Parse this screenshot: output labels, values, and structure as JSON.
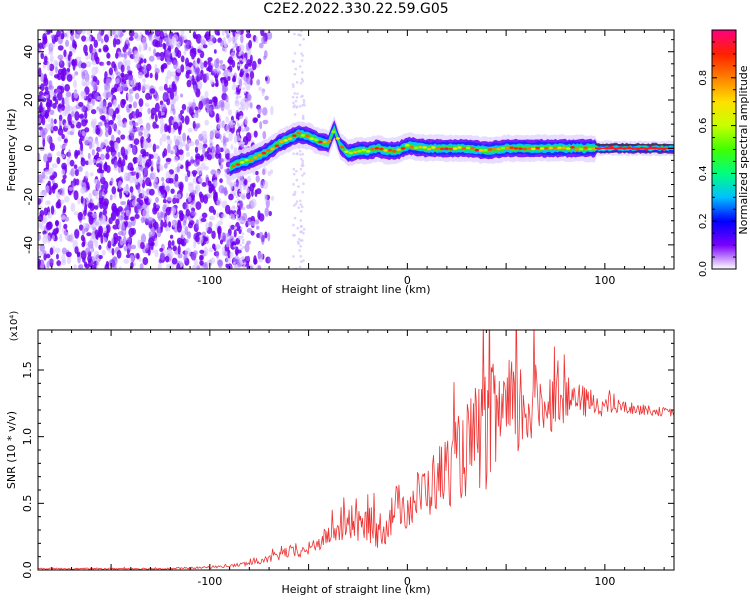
{
  "title": "C2E2.2022.330.22.59.G05",
  "chart_data": [
    {
      "type": "heatmap",
      "xlabel": "Height of straight line (km)",
      "ylabel": "Frequency (Hz)",
      "xlim": [
        -187,
        135
      ],
      "ylim": [
        -50,
        49
      ],
      "xticks": [
        -100,
        0,
        100
      ],
      "xtick_labels": [
        "-100",
        "0",
        "100"
      ],
      "yticks": [
        -40,
        -20,
        0,
        20,
        40
      ],
      "ytick_labels": [
        "-40",
        "-20",
        "0",
        "20",
        "40"
      ],
      "grid": false,
      "noise_region_x": [
        -187,
        -80
      ],
      "ridge": {
        "x": [
          -90,
          -85,
          -80,
          -75,
          -70,
          -65,
          -60,
          -55,
          -50,
          -45,
          -40,
          -37,
          -34,
          -30,
          -25,
          -20,
          -15,
          -10,
          -5,
          0,
          10,
          20,
          30,
          40,
          50,
          60,
          70,
          80,
          90,
          100,
          110,
          120,
          135
        ],
        "y": [
          -8,
          -6,
          -5,
          -3,
          -1,
          2,
          4,
          6,
          5,
          3,
          2,
          8,
          1,
          -2,
          -1,
          -1,
          0,
          -1,
          -1,
          1,
          0,
          0,
          0,
          -1,
          0,
          0,
          0,
          0,
          0,
          0,
          0,
          0,
          0
        ]
      }
    },
    {
      "type": "line",
      "xlabel": "Height of straight line (km)",
      "ylabel": "SNR (10 * v/v)",
      "y_multiplier": "(x10⁴)",
      "xlim": [
        -187,
        135
      ],
      "ylim": [
        0,
        1.8
      ],
      "xticks": [
        -100,
        0,
        100
      ],
      "xtick_labels": [
        "-100",
        "0",
        "100"
      ],
      "yticks": [
        0,
        0.5,
        1.0,
        1.5
      ],
      "ytick_labels": [
        "0.0",
        "0.5",
        "1.0",
        "1.5"
      ],
      "grid": false,
      "series": [
        {
          "color": "#ee3333",
          "x": [
            -187,
            -150,
            -120,
            -100,
            -90,
            -80,
            -70,
            -60,
            -55,
            -50,
            -45,
            -40,
            -35,
            -30,
            -25,
            -20,
            -15,
            -10,
            -5,
            0,
            5,
            10,
            15,
            20,
            25,
            30,
            35,
            40,
            45,
            50,
            55,
            60,
            65,
            70,
            75,
            80,
            85,
            90,
            95,
            100,
            110,
            120,
            135
          ],
          "y": [
            0.01,
            0.01,
            0.01,
            0.02,
            0.03,
            0.05,
            0.08,
            0.14,
            0.12,
            0.16,
            0.2,
            0.26,
            0.3,
            0.34,
            0.32,
            0.35,
            0.3,
            0.35,
            0.5,
            0.45,
            0.55,
            0.6,
            0.68,
            0.75,
            0.82,
            0.9,
            0.98,
            1.05,
            1.12,
            1.15,
            1.2,
            1.22,
            1.25,
            1.26,
            1.28,
            1.28,
            1.27,
            1.26,
            1.25,
            1.23,
            1.22,
            1.2,
            1.18
          ],
          "noise_amplitude": [
            0.005,
            0.005,
            0.006,
            0.008,
            0.01,
            0.02,
            0.03,
            0.05,
            0.04,
            0.05,
            0.06,
            0.08,
            0.1,
            0.12,
            0.12,
            0.14,
            0.14,
            0.16,
            0.16,
            0.16,
            0.2,
            0.22,
            0.25,
            0.28,
            0.32,
            0.36,
            0.42,
            0.46,
            0.46,
            0.44,
            0.4,
            0.36,
            0.3,
            0.26,
            0.22,
            0.18,
            0.14,
            0.12,
            0.1,
            0.08,
            0.05,
            0.04,
            0.03
          ]
        }
      ]
    }
  ],
  "colorbar": {
    "label": "Normalized spectral amplitude",
    "range": [
      0,
      1
    ],
    "ticks": [
      0,
      0.2,
      0.4,
      0.6,
      0.8
    ],
    "tick_labels": [
      "0.0",
      "0.2",
      "0.4",
      "0.6",
      "0.8"
    ],
    "colors": [
      "#ffffff",
      "#7a00ff",
      "#0000ff",
      "#00c0ff",
      "#00ff80",
      "#40ff00",
      "#c8ff00",
      "#ffe000",
      "#ff8000",
      "#ff2000",
      "#ff0080"
    ]
  }
}
